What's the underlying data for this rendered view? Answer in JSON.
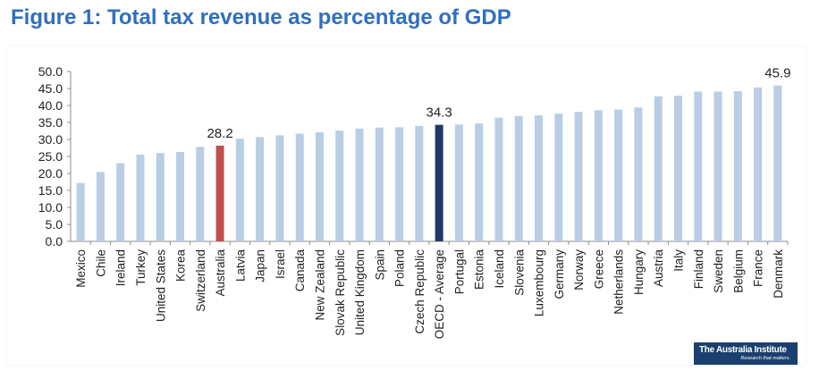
{
  "title": "Figure 1: Total tax revenue as percentage of GDP",
  "logo": {
    "name": "The Australia Institute",
    "tagline": "Research that matters."
  },
  "colors": {
    "bar": "#b9cde5",
    "australia": "#c0504d",
    "oecd": "#1f3864",
    "title": "#2f6fbf"
  },
  "chart_data": {
    "type": "bar",
    "title": "Total tax revenue as percentage of GDP",
    "xlabel": "",
    "ylabel": "",
    "ylim": [
      0,
      50
    ],
    "yticks": [
      "0.0",
      "5.0",
      "10.0",
      "15.0",
      "20.0",
      "25.0",
      "30.0",
      "35.0",
      "40.0",
      "45.0",
      "50.0"
    ],
    "grid": false,
    "categories": [
      "Mexico",
      "Chile",
      "Ireland",
      "Turkey",
      "United States",
      "Korea",
      "Switzerland",
      "Australia",
      "Latvia",
      "Japan",
      "Israel",
      "Canada",
      "New Zealand",
      "Slovak Republic",
      "United Kingdom",
      "Spain",
      "Poland",
      "Czech Republic",
      "OECD - Average",
      "Portugal",
      "Estonia",
      "Iceland",
      "Slovenia",
      "Luxembourg",
      "Germany",
      "Norway",
      "Greece",
      "Netherlands",
      "Hungary",
      "Austria",
      "Italy",
      "Finland",
      "Sweden",
      "Belgium",
      "France",
      "Denmark"
    ],
    "values": [
      17.2,
      20.4,
      23.0,
      25.5,
      26.0,
      26.3,
      27.8,
      28.2,
      30.2,
      30.7,
      31.2,
      31.7,
      32.1,
      32.6,
      33.2,
      33.5,
      33.6,
      34.0,
      34.3,
      34.4,
      34.7,
      36.4,
      36.9,
      37.1,
      37.6,
      38.1,
      38.6,
      38.8,
      39.4,
      42.7,
      42.9,
      44.1,
      44.1,
      44.2,
      45.3,
      45.9
    ],
    "highlights": {
      "Australia": "australia",
      "OECD - Average": "oecd"
    },
    "data_labels": {
      "Australia": "28.2",
      "OECD - Average": "34.3",
      "Denmark": "45.9"
    }
  }
}
